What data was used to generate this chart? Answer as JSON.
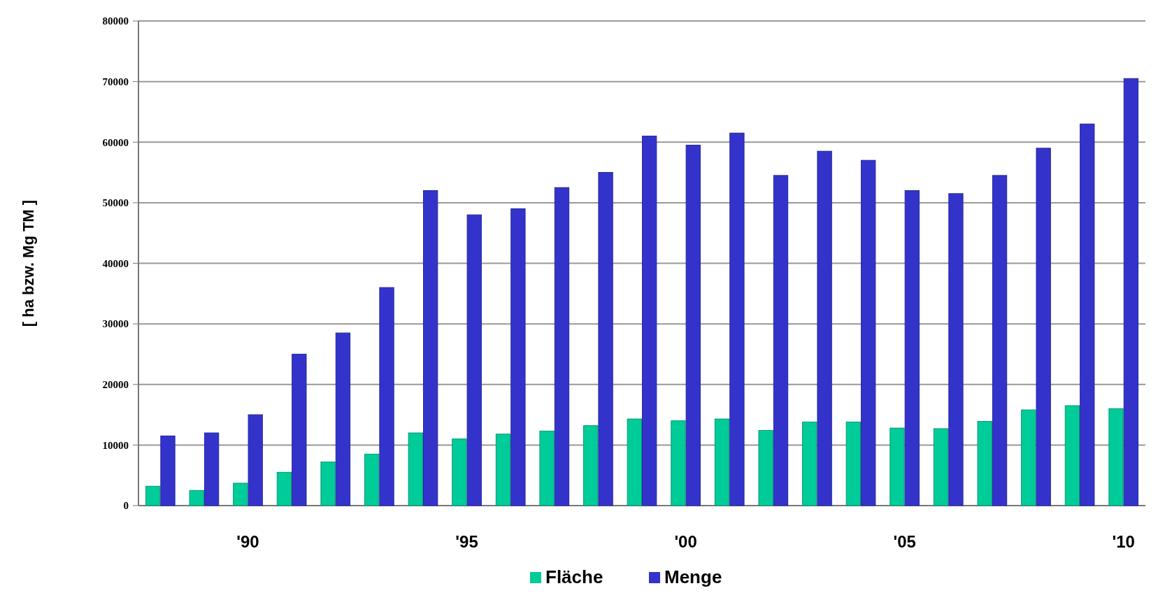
{
  "chart_data": {
    "type": "bar",
    "ylabel": "[ ha bzw. Mg TM ]",
    "categories": [
      null,
      null,
      "'90",
      null,
      null,
      null,
      null,
      "'95",
      null,
      null,
      null,
      null,
      "'00",
      null,
      null,
      null,
      null,
      "'05",
      null,
      null,
      null,
      null,
      "'10"
    ],
    "series": [
      {
        "name": "Fläche",
        "color": "#00cc99",
        "values": [
          3200,
          2500,
          3700,
          5500,
          7200,
          8500,
          12000,
          11000,
          11800,
          12300,
          13200,
          14300,
          14000,
          14300,
          12400,
          13800,
          13800,
          12800,
          12700,
          13900,
          15800,
          16500,
          16000
        ]
      },
      {
        "name": "Menge",
        "color": "#3333cc",
        "values": [
          11500,
          12000,
          15000,
          25000,
          28500,
          36000,
          52000,
          48000,
          49000,
          52500,
          55000,
          61000,
          59500,
          61500,
          54500,
          58500,
          57000,
          52000,
          51500,
          54500,
          59000,
          63000,
          70500
        ]
      }
    ],
    "ylim": [
      0,
      80000
    ],
    "yticks": [
      0,
      10000,
      20000,
      30000,
      40000,
      50000,
      60000,
      70000,
      80000
    ],
    "grid": "y",
    "legend": "bottom"
  }
}
